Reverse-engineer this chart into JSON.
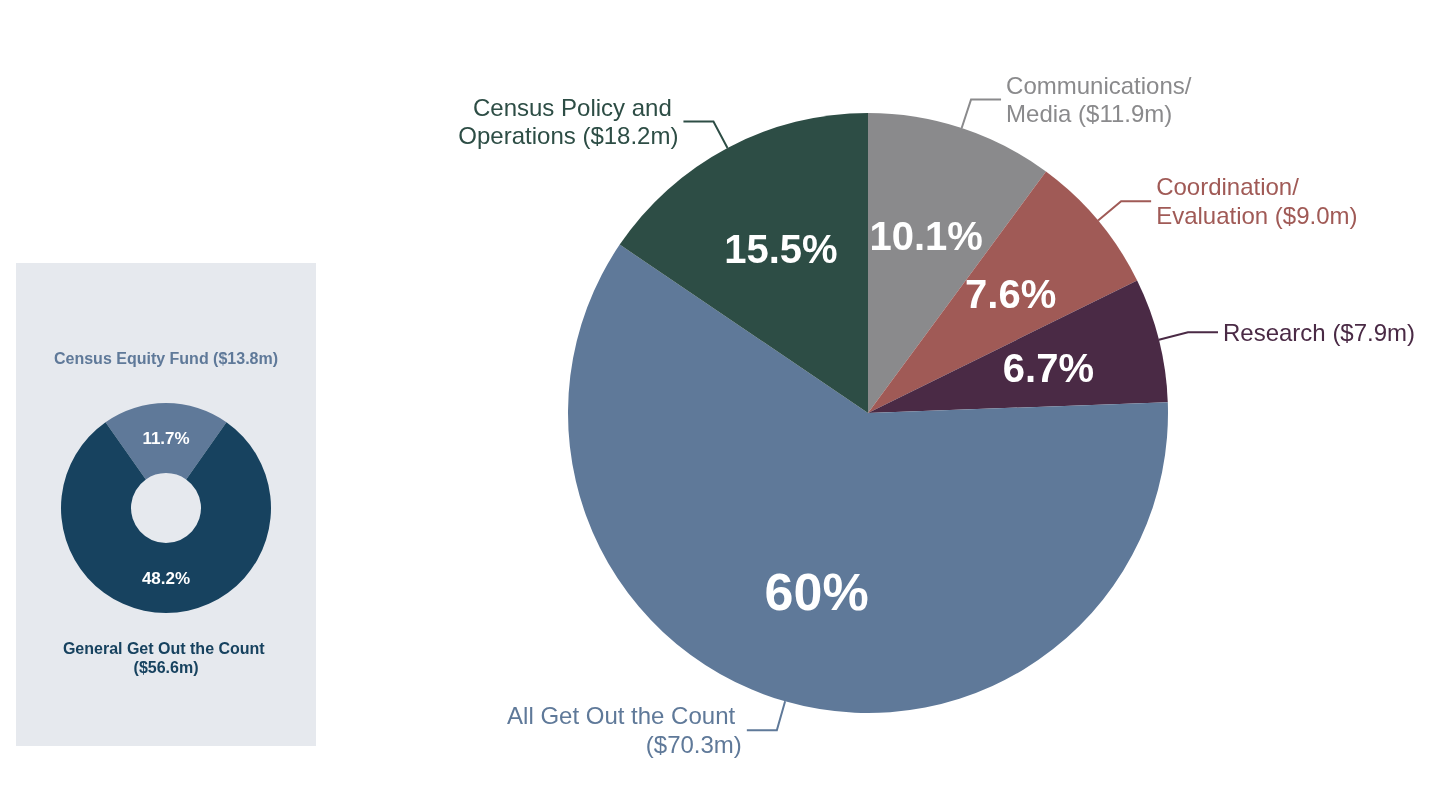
{
  "chart_data": [
    {
      "type": "pie",
      "categories": [
        "Communications/ Media ($11.9m)",
        "Coordination/ Evaluation ($9.0m)",
        "Research ($7.9m)",
        "All Get Out the Count ($70.3m)",
        "Census Policy and Operations ($18.2m)"
      ],
      "values": [
        10.1,
        7.6,
        6.7,
        60,
        15.5
      ],
      "colors": [
        "#8a8a8c",
        "#a05a56",
        "#4a2a45",
        "#5f7999",
        "#2d4d45"
      ],
      "value_labels": [
        "10.1%",
        "7.6%",
        "6.7%",
        "60%",
        "15.5%"
      ]
    },
    {
      "type": "donut",
      "categories": [
        "Census Equity Fund ($13.8m)",
        "General Get Out the Count ($56.6m)"
      ],
      "values": [
        11.7,
        48.2
      ],
      "colors": [
        "#5f7999",
        "#17425f"
      ],
      "value_labels": [
        "11.7%",
        "48.2%"
      ]
    }
  ]
}
